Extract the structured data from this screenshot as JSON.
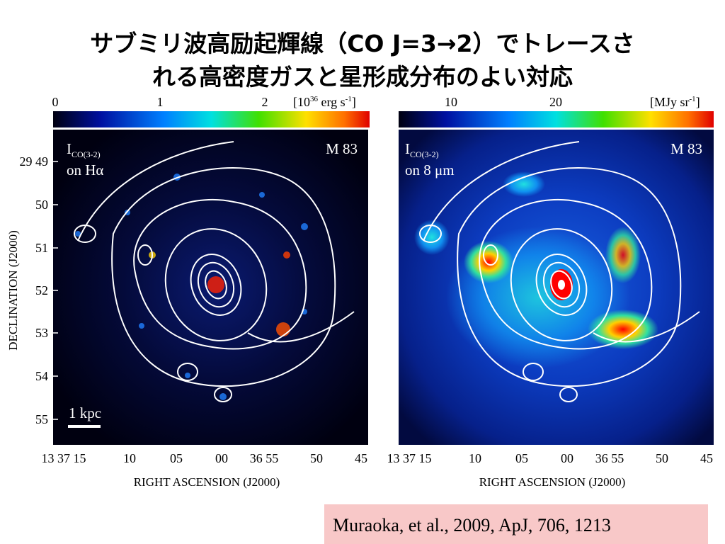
{
  "header": {
    "title_lines": [
      "サブミリ波高励起輝線（CO J=3→2）でトレースさ",
      "れる高密度ガスと星形成分布のよい対応"
    ]
  },
  "panels": [
    {
      "colorbar_ticks": [
        "0",
        "1",
        "2"
      ],
      "colorbar_unit": {
        "open": "[10",
        "exp": "36",
        "mid": " erg s",
        "exp2": "-1",
        "close": "]"
      },
      "label_main": "I",
      "label_sub": "CO(3-2)",
      "label_on": "on Hα",
      "object": "M 83",
      "scale_bar": "1 kpc",
      "dec_ticks": [
        "29 49",
        "50",
        "51",
        "52",
        "53",
        "54",
        "55"
      ],
      "dec_label": "DECLINATION (J2000)",
      "ra_ticks": [
        "13 37 15",
        "10",
        "05",
        "00",
        "36 55",
        "50",
        "45"
      ],
      "ra_label": "RIGHT ASCENSION (J2000)"
    },
    {
      "colorbar_ticks": [
        "10",
        "20"
      ],
      "colorbar_unit": {
        "open": "[MJy sr",
        "exp": "-1",
        "close": "]"
      },
      "label_main": "I",
      "label_sub": "CO(3-2)",
      "label_on": "on 8 μm",
      "object": "M 83",
      "ra_ticks": [
        "13 37 15",
        "10",
        "05",
        "00",
        "36 55",
        "50",
        "45"
      ],
      "ra_label": "RIGHT ASCENSION (J2000)"
    }
  ],
  "citation": "Muraoka, et al., 2009, ApJ, 706, 1213"
}
